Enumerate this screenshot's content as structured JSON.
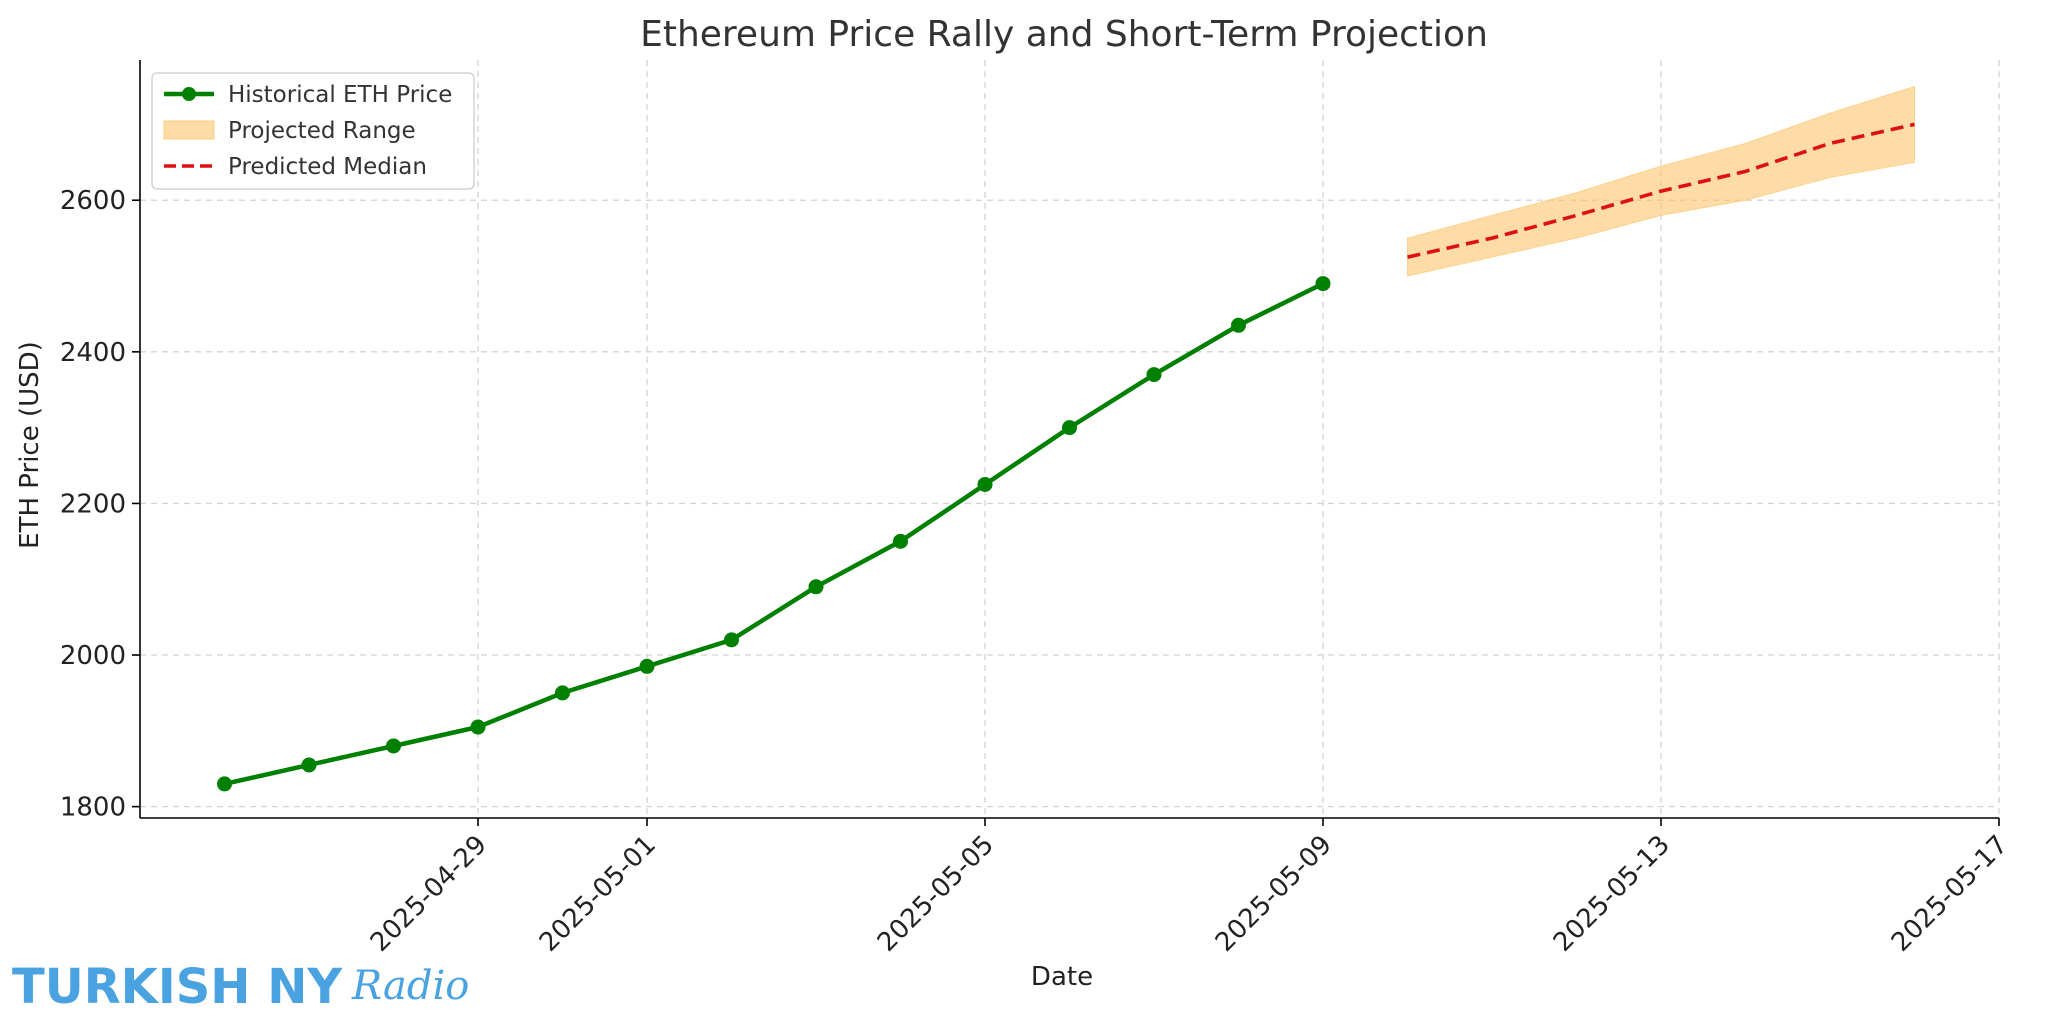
{
  "brand": {
    "main": "TURKISH NY",
    "script": "Radio",
    "color": "#4aa3e0"
  },
  "chart_data": {
    "type": "line",
    "title": "Ethereum Price Rally and Short-Term Projection",
    "xlabel": "Date",
    "ylabel": "ETH Price (USD)",
    "xlim": [
      "2025-04-25",
      "2025-05-17"
    ],
    "ylim": [
      1785,
      2785
    ],
    "x_ticks": [
      "2025-04-29",
      "2025-05-01",
      "2025-05-05",
      "2025-05-09",
      "2025-05-13",
      "2025-05-17"
    ],
    "y_ticks": [
      1800,
      2000,
      2200,
      2400,
      2600
    ],
    "grid": true,
    "legend_position": "top-left",
    "series": [
      {
        "name": "Historical ETH Price",
        "kind": "line-marker",
        "color": "#008000",
        "x": [
          "2025-04-26",
          "2025-04-27",
          "2025-04-28",
          "2025-04-29",
          "2025-04-30",
          "2025-05-01",
          "2025-05-02",
          "2025-05-03",
          "2025-05-04",
          "2025-05-05",
          "2025-05-06",
          "2025-05-07",
          "2025-05-08",
          "2025-05-09"
        ],
        "y": [
          1830,
          1855,
          1880,
          1905,
          1950,
          1985,
          2020,
          2090,
          2150,
          2225,
          2300,
          2370,
          2435,
          2490
        ]
      },
      {
        "name": "Projected Range",
        "kind": "band",
        "color": "#fdbf5e",
        "x": [
          "2025-05-10",
          "2025-05-11",
          "2025-05-12",
          "2025-05-13",
          "2025-05-14",
          "2025-05-15",
          "2025-05-16"
        ],
        "lower": [
          2500,
          2525,
          2550,
          2580,
          2600,
          2630,
          2650
        ],
        "upper": [
          2550,
          2580,
          2610,
          2645,
          2675,
          2715,
          2750
        ]
      },
      {
        "name": "Predicted Median",
        "kind": "dashed-line",
        "color": "#dd1111",
        "x": [
          "2025-05-10",
          "2025-05-11",
          "2025-05-12",
          "2025-05-13",
          "2025-05-14",
          "2025-05-15",
          "2025-05-16"
        ],
        "y": [
          2525,
          2550,
          2580,
          2612,
          2638,
          2675,
          2700
        ]
      }
    ]
  }
}
